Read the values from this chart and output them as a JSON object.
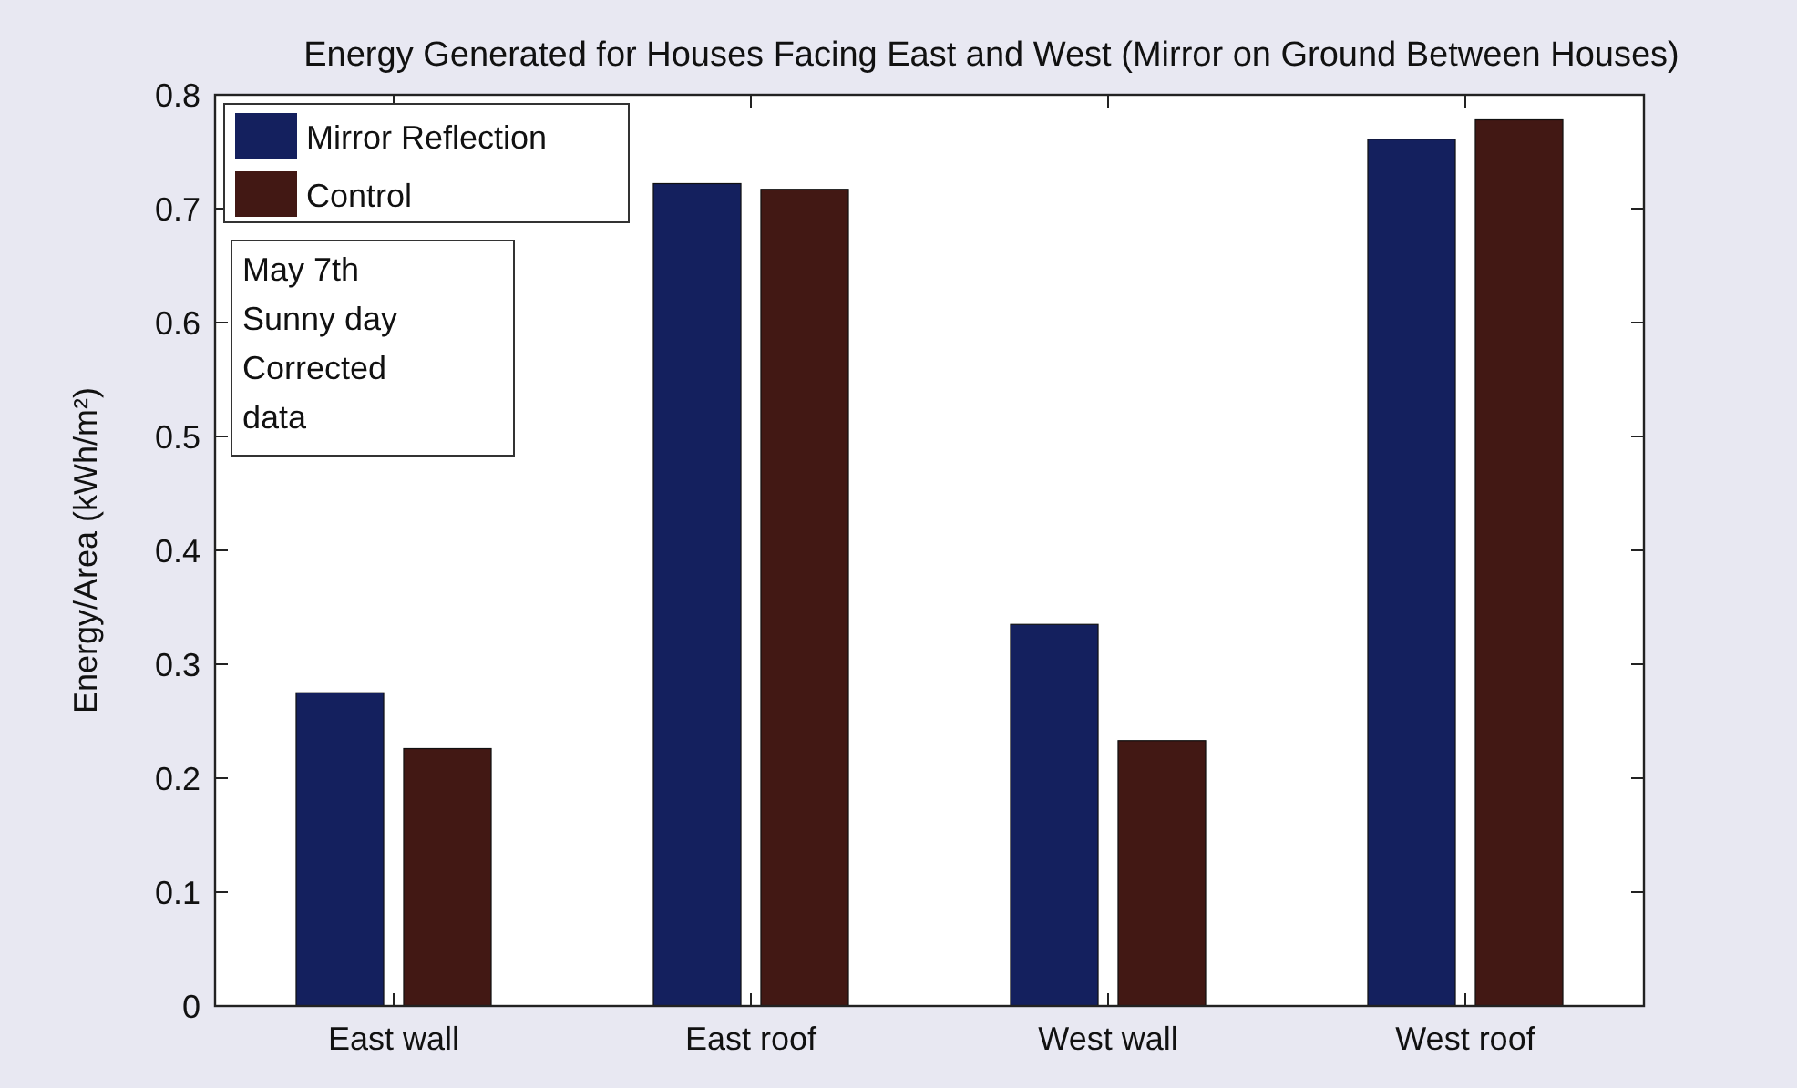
{
  "chart_data": {
    "type": "bar",
    "title": "Energy Generated for Houses Facing East and West (Mirror on Ground Between Houses)",
    "ylabel": "Energy/Area (kWh/m²)",
    "categories": [
      "East wall",
      "East roof",
      "West wall",
      "West roof"
    ],
    "series": [
      {
        "name": "Mirror Reflection",
        "color": "#14205e",
        "values": [
          0.275,
          0.722,
          0.335,
          0.761
        ]
      },
      {
        "name": "Control",
        "color": "#421814",
        "values": [
          0.226,
          0.717,
          0.233,
          0.778
        ]
      }
    ],
    "ylim": [
      0,
      0.8
    ],
    "yticks": [
      0,
      0.1,
      0.2,
      0.3,
      0.4,
      0.5,
      0.6,
      0.7,
      0.8
    ],
    "legend": "top left",
    "annotations": [
      "May 7th\nSunny day\nCorrected\ndata"
    ]
  }
}
